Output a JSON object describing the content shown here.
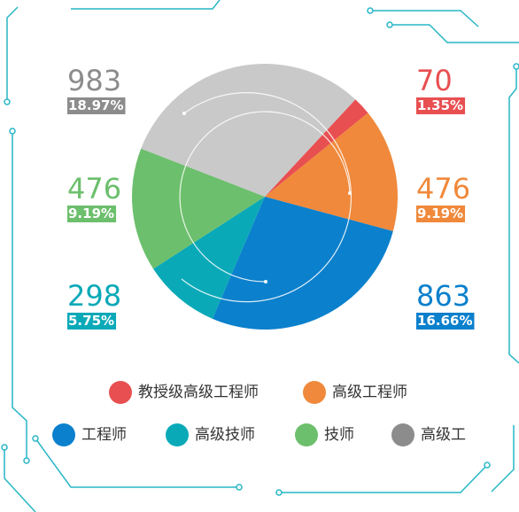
{
  "chart_data": {
    "type": "pie",
    "categories": [
      "教授级高级工程师",
      "高级工程师",
      "工程师",
      "高级技师",
      "技师",
      "高级工"
    ],
    "values": [
      70,
      476,
      863,
      298,
      476,
      983
    ],
    "shares": [
      "1.35%",
      "9.19%",
      "16.66%",
      "5.75%",
      "9.19%",
      "18.97%"
    ],
    "colors": [
      "#e84f51",
      "#f0893b",
      "#0b80cc",
      "#0aa9b8",
      "#6cbf6c",
      "#8c8c8c"
    ]
  }
}
